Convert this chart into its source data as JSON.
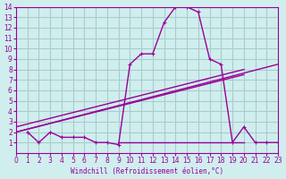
{
  "bg_color": "#d0eeee",
  "grid_color": "#aacccc",
  "line_color": "#990099",
  "title": "Windchill (Refroidissement éolien,°C)",
  "xlim": [
    0,
    23
  ],
  "ylim": [
    0,
    14
  ],
  "xticks": [
    0,
    1,
    2,
    3,
    4,
    5,
    6,
    7,
    8,
    9,
    10,
    11,
    12,
    13,
    14,
    15,
    16,
    17,
    18,
    19,
    20,
    21,
    22,
    23
  ],
  "yticks": [
    1,
    2,
    3,
    4,
    5,
    6,
    7,
    8,
    9,
    10,
    11,
    12,
    13,
    14
  ],
  "curve1_x": [
    1,
    2,
    3,
    4,
    5,
    6,
    7,
    8,
    9,
    10,
    11,
    12,
    13,
    14,
    15,
    16,
    17,
    18,
    19,
    20,
    21,
    22,
    23
  ],
  "curve1_y": [
    2,
    1,
    2,
    1.5,
    1.5,
    1.5,
    1,
    1,
    0.8,
    8.5,
    9.5,
    9.5,
    12.5,
    14,
    14,
    13.5,
    9,
    8.5,
    1,
    2.5,
    1,
    1,
    1
  ],
  "curve2_x": [
    0,
    23
  ],
  "curve2_y": [
    2,
    8.5
  ],
  "curve3_x": [
    0,
    20
  ],
  "curve3_y": [
    2.5,
    8
  ],
  "curve4_x": [
    0,
    20
  ],
  "curve4_y": [
    2,
    7.5
  ],
  "flat_line_x": [
    9,
    20
  ],
  "flat_line_y": [
    1,
    1
  ]
}
